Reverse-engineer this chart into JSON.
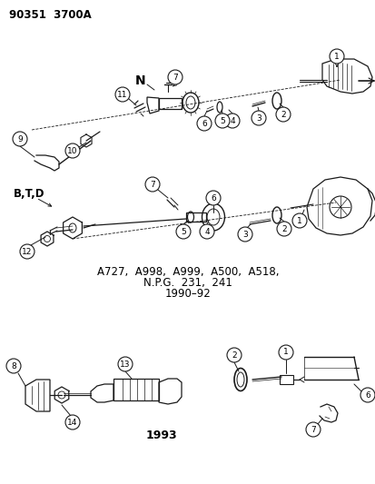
{
  "title": "90351  3700A",
  "background_color": "#ffffff",
  "line_color": "#1a1a1a",
  "text_color": "#000000",
  "label_line1": "A727,  A998,  A999,  A500,  A518,",
  "label_line2": "N.P.G.  231,  241",
  "label_line3": "1990–92",
  "label_1993": "1993",
  "label_N": "N",
  "label_BTD": "B,T,D"
}
